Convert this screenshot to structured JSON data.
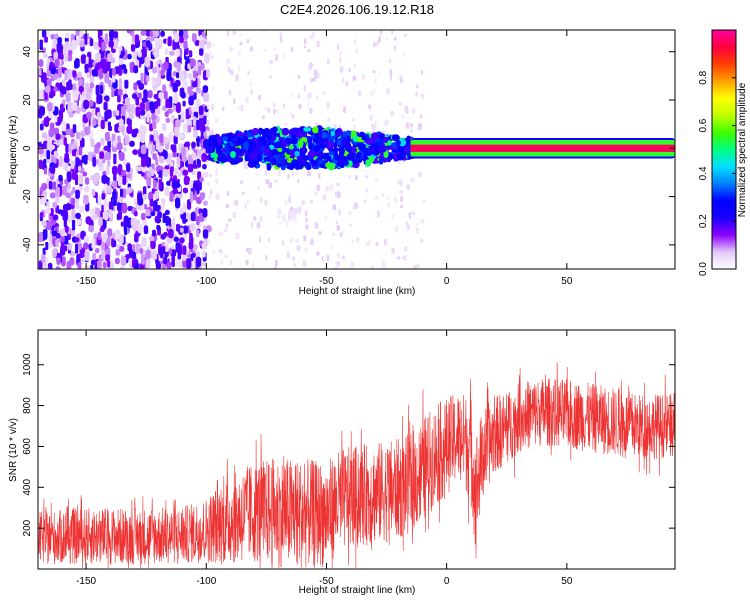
{
  "figure": {
    "title": "C2E4.2026.106.19.12.R18"
  },
  "chart_data": [
    {
      "type": "heatmap",
      "name": "spectrogram",
      "xlabel": "Height of straight line (km)",
      "ylabel": "Frequency (Hz)",
      "xlim": [
        -170,
        95
      ],
      "ylim": [
        -50,
        49
      ],
      "xticks": [
        -150,
        -100,
        -50,
        0,
        50
      ],
      "yticks": [
        -40,
        -20,
        0,
        20,
        40
      ],
      "grid": false,
      "colorbar": {
        "label": "Normalized spectral amplitude",
        "range": [
          0,
          1
        ],
        "ticks": [
          0.0,
          0.2,
          0.4,
          0.6,
          0.8
        ],
        "colormap": [
          "#ffffff",
          "#e3c9f7",
          "#8b00ff",
          "#1a00ff",
          "#0000ff",
          "#0080ff",
          "#00e0ff",
          "#00ff80",
          "#40ff00",
          "#c0ff00",
          "#ffff00",
          "#ffa000",
          "#ff4000",
          "#ff0040",
          "#ff00a0"
        ]
      },
      "regions": [
        {
          "label": "noise",
          "x_range": [
            -170,
            -100
          ],
          "freq_range": [
            -50,
            49
          ],
          "amplitude": 0.1
        },
        {
          "label": "sparse",
          "x_range": [
            -100,
            -10
          ],
          "freq_range": [
            -50,
            49
          ],
          "amplitude": 0.03
        },
        {
          "label": "signal band",
          "x_range": [
            -100,
            -15
          ],
          "freq_range": [
            -7,
            8
          ],
          "amplitude": 0.3
        },
        {
          "label": "carrier",
          "x_range": [
            -15,
            95
          ],
          "freq_center": 0,
          "freq_width": 3,
          "amplitude": 0.95
        }
      ]
    },
    {
      "type": "line",
      "name": "snr",
      "xlabel": "Height of straight line (km)",
      "ylabel": "SNR (10 * v/v)",
      "xlim": [
        -170,
        95
      ],
      "ylim": [
        0,
        1170
      ],
      "xticks": [
        -150,
        -100,
        -50,
        0,
        50
      ],
      "yticks": [
        200,
        400,
        600,
        800,
        1000
      ],
      "color": "#ee3333",
      "grid": false,
      "envelope": {
        "x": [
          -170,
          -150,
          -130,
          -110,
          -100,
          -95,
          -80,
          -70,
          -60,
          -50,
          -45,
          -40,
          -30,
          -20,
          -15,
          -10,
          -5,
          0,
          5,
          10,
          12,
          15,
          20,
          25,
          30,
          35,
          40,
          50,
          60,
          70,
          80,
          95
        ],
        "mean": [
          150,
          160,
          160,
          165,
          190,
          220,
          280,
          280,
          270,
          270,
          330,
          350,
          370,
          390,
          420,
          480,
          550,
          600,
          650,
          600,
          380,
          560,
          660,
          690,
          740,
          760,
          770,
          760,
          740,
          720,
          700,
          700
        ],
        "spread": [
          130,
          140,
          140,
          140,
          160,
          200,
          250,
          270,
          270,
          260,
          250,
          250,
          250,
          250,
          250,
          260,
          250,
          240,
          220,
          260,
          290,
          220,
          190,
          180,
          170,
          170,
          170,
          170,
          170,
          170,
          160,
          160
        ]
      }
    }
  ]
}
